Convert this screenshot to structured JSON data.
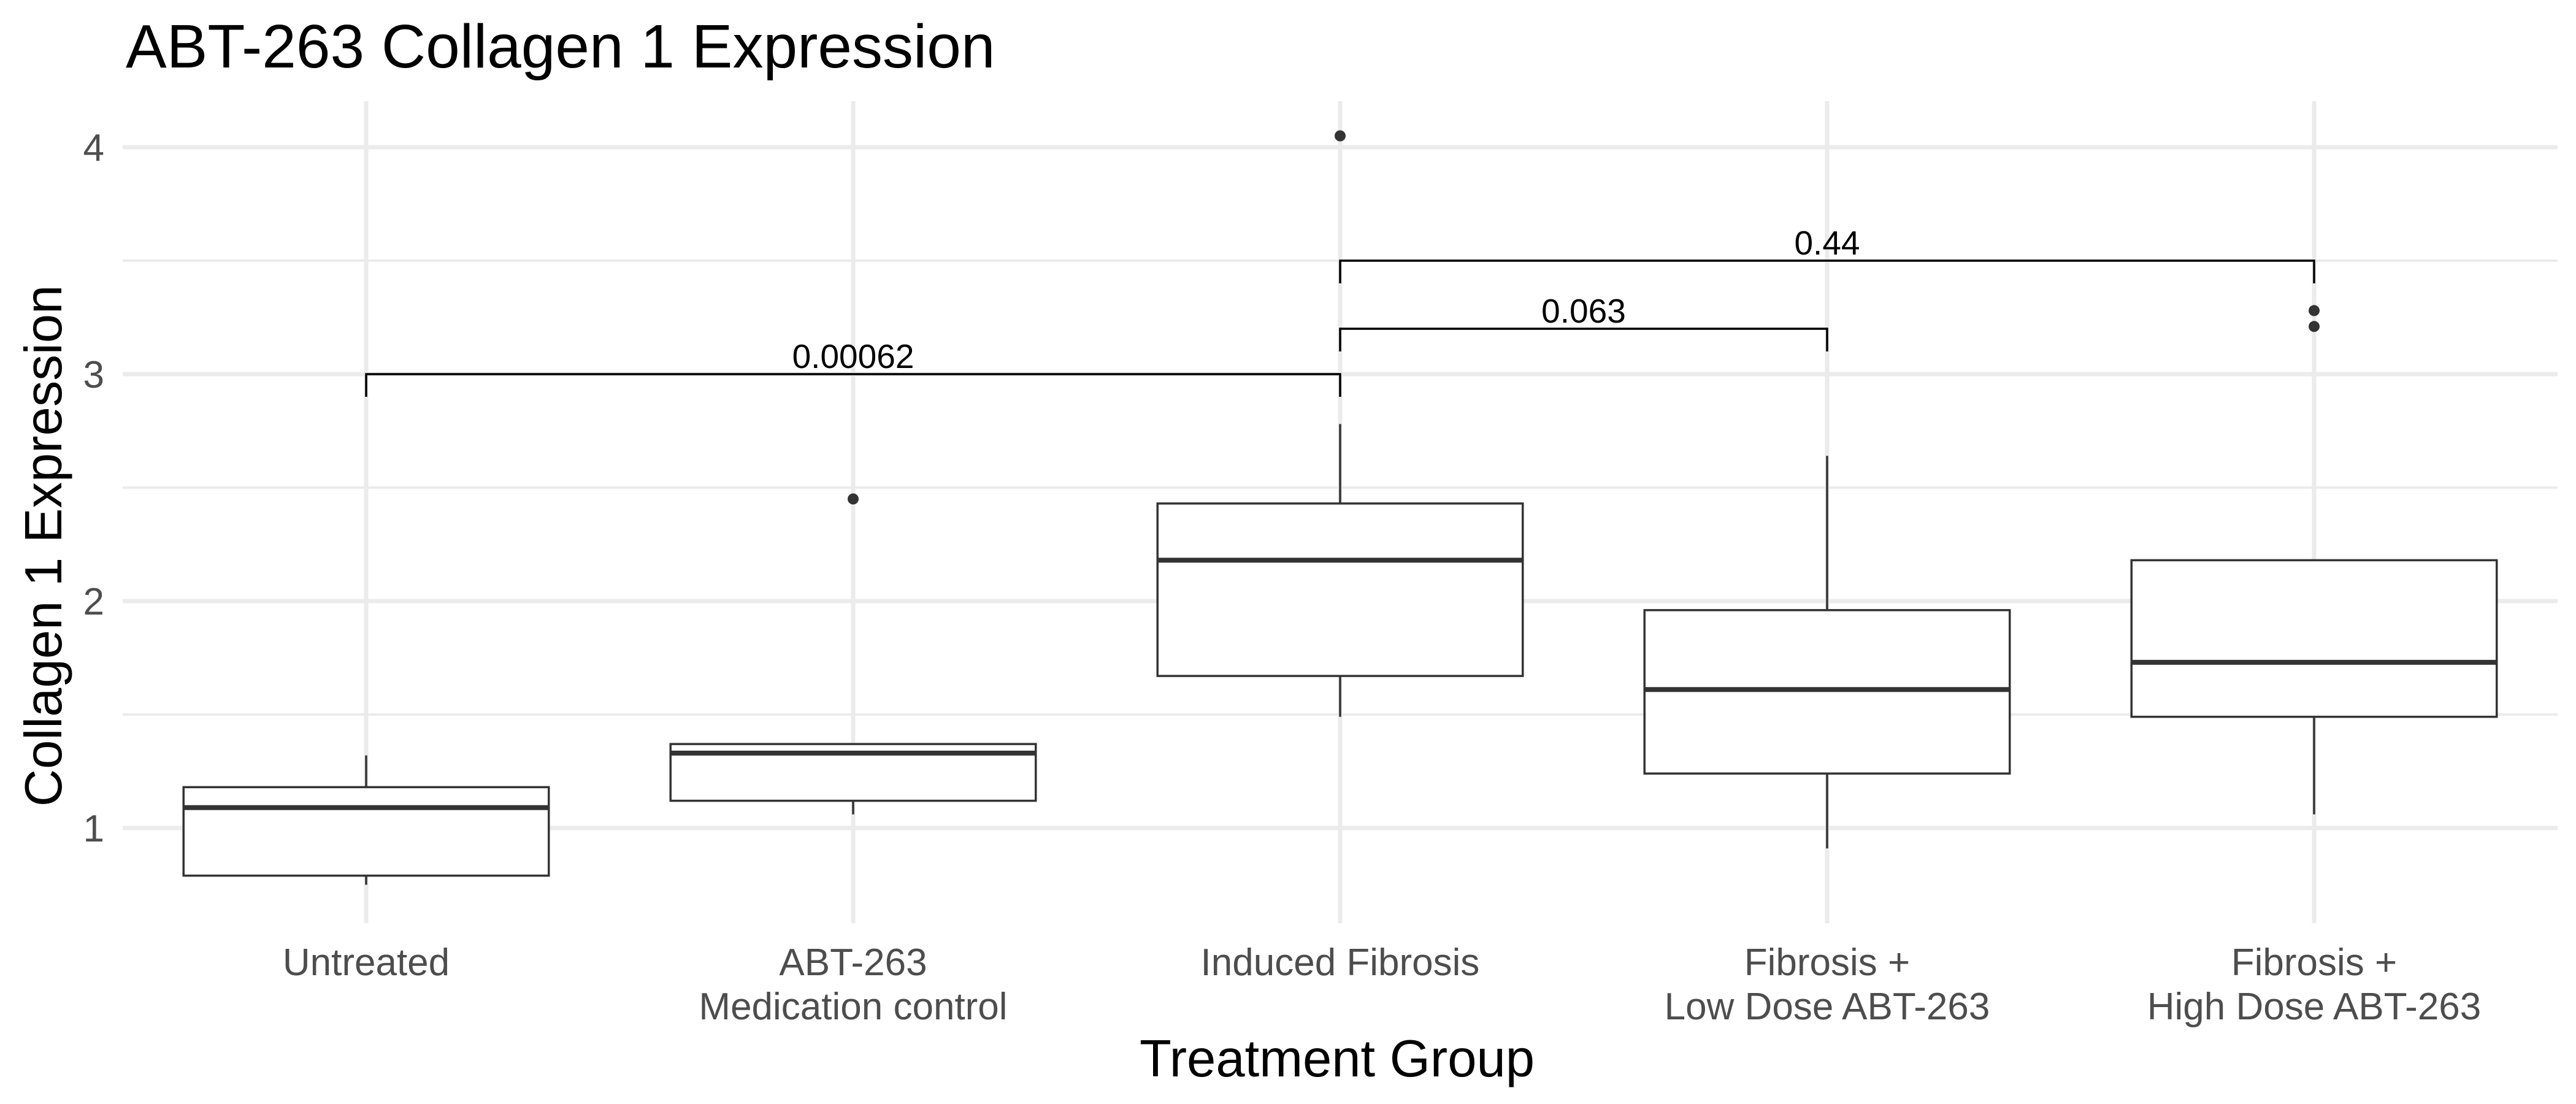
{
  "chart_data": {
    "type": "box",
    "title": "ABT-263 Collagen 1 Expression",
    "xlabel": "Treatment Group",
    "ylabel": "Collagen 1 Expression",
    "ylim": [
      0.6,
      4.3
    ],
    "yticks": [
      1,
      2,
      3,
      4
    ],
    "grid": true,
    "categories": [
      [
        "Untreated"
      ],
      [
        "ABT-263",
        "Medication control"
      ],
      [
        "Induced Fibrosis"
      ],
      [
        "Fibrosis +",
        "Low Dose ABT-263"
      ],
      [
        "Fibrosis +",
        "High Dose ABT-263"
      ]
    ],
    "boxes": [
      {
        "whisker_low": 0.75,
        "q1": 0.79,
        "median": 1.09,
        "q3": 1.18,
        "whisker_high": 1.32,
        "outliers": []
      },
      {
        "whisker_low": 1.06,
        "q1": 1.12,
        "median": 1.33,
        "q3": 1.37,
        "whisker_high": 1.37,
        "outliers": [
          2.45
        ]
      },
      {
        "whisker_low": 1.49,
        "q1": 1.67,
        "median": 2.18,
        "q3": 2.43,
        "whisker_high": 2.78,
        "outliers": [
          4.05
        ]
      },
      {
        "whisker_low": 0.91,
        "q1": 1.24,
        "median": 1.61,
        "q3": 1.96,
        "whisker_high": 2.64,
        "outliers": []
      },
      {
        "whisker_low": 1.06,
        "q1": 1.49,
        "median": 1.73,
        "q3": 2.18,
        "whisker_high": 2.18,
        "outliers": [
          3.21,
          3.28
        ]
      }
    ],
    "comparisons": [
      {
        "from": 0,
        "to": 2,
        "y": 3.0,
        "label": "0.00062"
      },
      {
        "from": 2,
        "to": 3,
        "y": 3.2,
        "label": "0.063"
      },
      {
        "from": 2,
        "to": 4,
        "y": 3.5,
        "label": "0.44"
      }
    ]
  }
}
